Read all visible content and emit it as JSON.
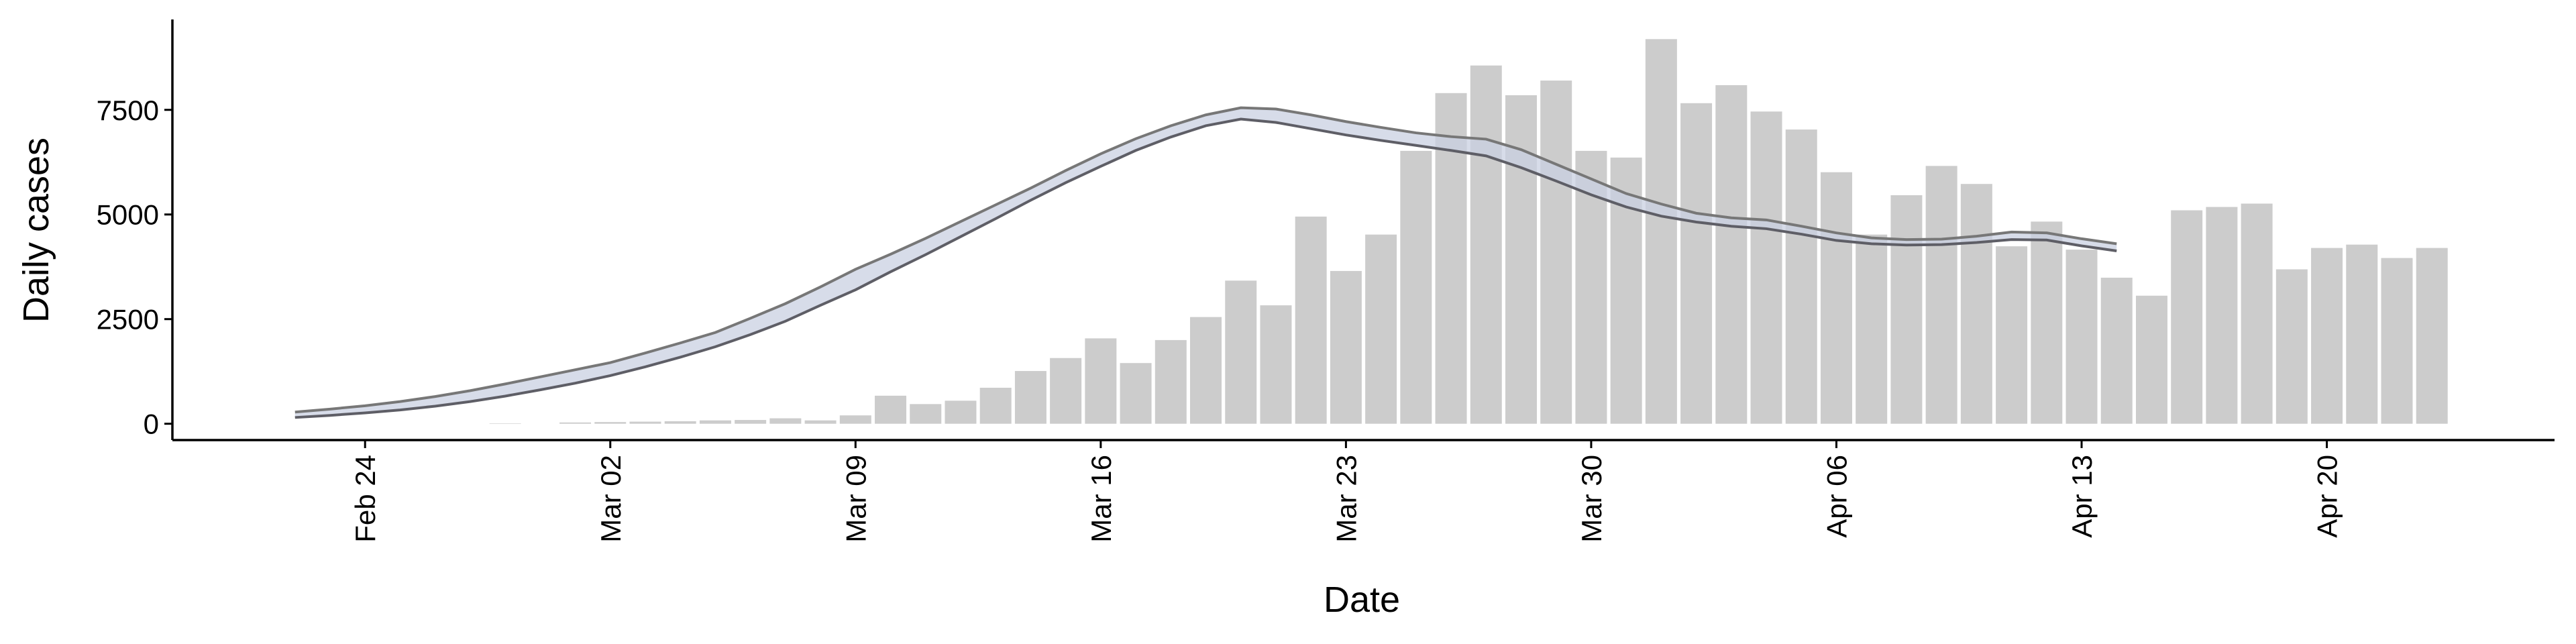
{
  "chart_data": {
    "type": "bar",
    "x_label": "Date",
    "y_label": "Daily cases",
    "categories": [
      null,
      null,
      "Feb 24",
      null,
      null,
      null,
      null,
      null,
      null,
      "Mar 02",
      null,
      null,
      null,
      null,
      null,
      null,
      "Mar 09",
      null,
      null,
      null,
      null,
      null,
      null,
      "Mar 16",
      null,
      null,
      null,
      null,
      null,
      null,
      "Mar 23",
      null,
      null,
      null,
      null,
      null,
      null,
      "Mar 30",
      null,
      null,
      null,
      null,
      null,
      null,
      "Apr 06",
      null,
      null,
      null,
      null,
      null,
      null,
      "Apr 13",
      null,
      null,
      null,
      null,
      null,
      null,
      "Apr 20",
      null,
      null,
      null
    ],
    "values": [
      0,
      0,
      0,
      0,
      0,
      0,
      10,
      0,
      30,
      40,
      50,
      60,
      80,
      90,
      130,
      80,
      200,
      670,
      470,
      550,
      860,
      1260,
      1570,
      2040,
      1450,
      2000,
      2550,
      3420,
      2830,
      4950,
      3650,
      4520,
      6520,
      7900,
      8560,
      7850,
      8200,
      6520,
      6360,
      9190,
      7660,
      8090,
      7460,
      7030,
      6010,
      4520,
      5460,
      6160,
      5730,
      4240,
      4830,
      4160,
      3490,
      3060,
      5100,
      5180,
      5260,
      3690,
      4200,
      4280,
      3960,
      4200
    ],
    "color": "#cccccc",
    "series": [
      {
        "color": "#777777",
        "values": [
          280,
          350,
          430,
          530,
          650,
          790,
          950,
          1120,
          1290,
          1460,
          1690,
          1930,
          2180,
          2520,
          2870,
          3270,
          3690,
          4050,
          4430,
          4830,
          5230,
          5630,
          6050,
          6450,
          6810,
          7120,
          7380,
          7550,
          7520,
          7380,
          7220,
          7080,
          6950,
          6860,
          6800,
          6550,
          6200,
          5850,
          5500,
          5250,
          5030,
          4920,
          4870,
          4720,
          4560,
          4440,
          4400,
          4410,
          4480,
          4580,
          4560,
          4420,
          4300,
          null,
          null,
          null,
          null,
          null,
          null,
          null,
          null,
          null
        ]
      },
      {
        "color": "#5e5e66",
        "values": [
          150,
          200,
          260,
          330,
          420,
          530,
          660,
          810,
          970,
          1150,
          1360,
          1590,
          1840,
          2130,
          2450,
          2830,
          3200,
          3630,
          4040,
          4470,
          4900,
          5340,
          5760,
          6150,
          6530,
          6850,
          7120,
          7280,
          7200,
          7050,
          6900,
          6770,
          6650,
          6530,
          6400,
          6120,
          5800,
          5470,
          5180,
          4960,
          4820,
          4720,
          4660,
          4530,
          4380,
          4300,
          4270,
          4280,
          4330,
          4400,
          4390,
          4250,
          4130,
          null,
          null,
          null,
          null,
          null,
          null,
          null,
          null,
          null
        ]
      }
    ],
    "band_color": "#c9d0e2",
    "ylim": [
      -390,
      9660
    ],
    "yticks": [
      0,
      2500,
      5000,
      7500
    ]
  }
}
